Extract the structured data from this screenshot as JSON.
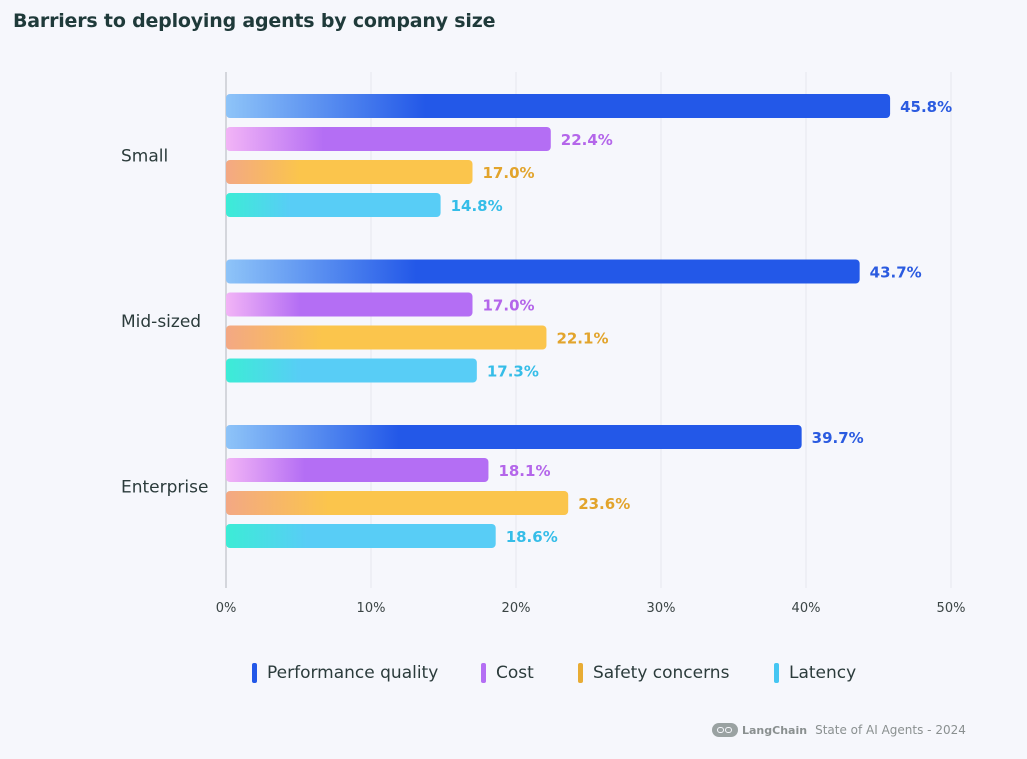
{
  "chart_data": {
    "type": "bar",
    "orientation": "horizontal",
    "title": "Barriers to deploying agents by company size",
    "categories": [
      "Small",
      "Mid-sized",
      "Enterprise"
    ],
    "series": [
      {
        "name": "Performance quality",
        "values": [
          45.8,
          43.7,
          39.7
        ],
        "labels": [
          "45.8%",
          "43.7%",
          "39.7%"
        ],
        "color": "#2358e8",
        "gradient_start": "#8ec4f8"
      },
      {
        "name": "Cost",
        "values": [
          22.4,
          17.0,
          18.1
        ],
        "labels": [
          "22.4%",
          "17.0%",
          "18.1%"
        ],
        "color": "#b46ef4",
        "gradient_start": "#f2b4f6"
      },
      {
        "name": "Safety concerns",
        "values": [
          17.0,
          22.1,
          23.6
        ],
        "labels": [
          "17.0%",
          "22.1%",
          "23.6%"
        ],
        "color": "#fbc54c",
        "gradient_start": "#f3a884"
      },
      {
        "name": "Latency",
        "values": [
          14.8,
          17.3,
          18.6
        ],
        "labels": [
          "14.8%",
          "17.3%",
          "18.6%"
        ],
        "color": "#58cdf6",
        "gradient_start": "#3cecd6"
      }
    ],
    "label_colors": [
      "#2b5be0",
      "#b466ea",
      "#e2a42c",
      "#35bde8"
    ],
    "x_ticks": [
      0,
      10,
      20,
      30,
      40,
      50
    ],
    "x_tick_labels": [
      "0%",
      "10%",
      "20%",
      "30%",
      "40%",
      "50%"
    ],
    "xlim": [
      0,
      50
    ],
    "grid": true,
    "legend": "bottom"
  },
  "footer": {
    "brand": "LangChain",
    "text": "State of AI Agents - 2024",
    "logo_icon": "langchain-logo-icon"
  }
}
